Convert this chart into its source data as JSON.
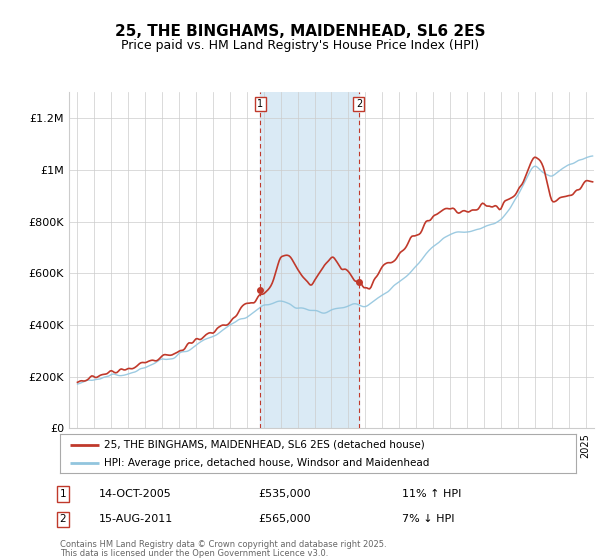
{
  "title": "25, THE BINGHAMS, MAIDENHEAD, SL6 2ES",
  "subtitle": "Price paid vs. HM Land Registry's House Price Index (HPI)",
  "title_fontsize": 11,
  "subtitle_fontsize": 9,
  "ylabel_ticks": [
    "£0",
    "£200K",
    "£400K",
    "£600K",
    "£800K",
    "£1M",
    "£1.2M"
  ],
  "ytick_values": [
    0,
    200000,
    400000,
    600000,
    800000,
    1000000,
    1200000
  ],
  "ylim": [
    0,
    1300000
  ],
  "xlim_start": 1994.5,
  "xlim_end": 2025.5,
  "sale1_x": 2005.79,
  "sale1_y": 535000,
  "sale2_x": 2011.62,
  "sale2_y": 565000,
  "sale1_label": "14-OCT-2005",
  "sale1_price": "£535,000",
  "sale1_hpi": "11% ↑ HPI",
  "sale2_label": "15-AUG-2011",
  "sale2_price": "£565,000",
  "sale2_hpi": "7% ↓ HPI",
  "legend_line1": "25, THE BINGHAMS, MAIDENHEAD, SL6 2ES (detached house)",
  "legend_line2": "HPI: Average price, detached house, Windsor and Maidenhead",
  "footer1": "Contains HM Land Registry data © Crown copyright and database right 2025.",
  "footer2": "This data is licensed under the Open Government Licence v3.0.",
  "hpi_color": "#92c5de",
  "price_color": "#c0392b",
  "shade_color": "#daeaf5",
  "grid_color": "#cccccc",
  "background_color": "#ffffff"
}
